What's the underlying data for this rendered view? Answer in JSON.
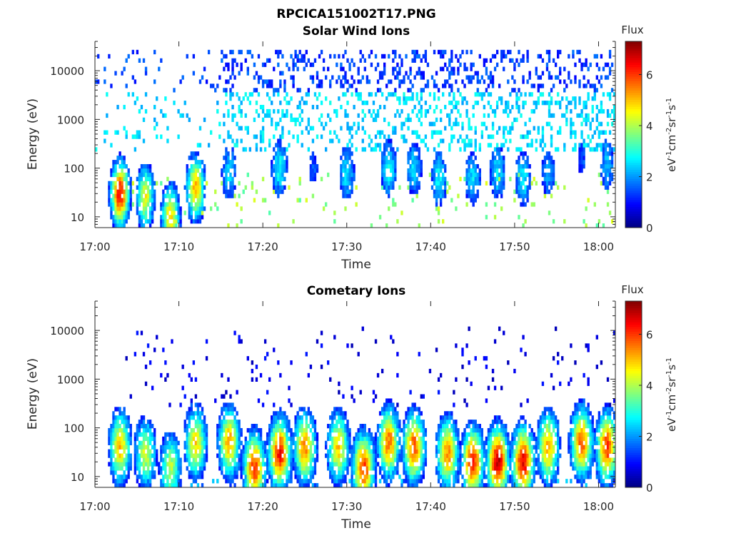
{
  "figure_title": "RPCICA151002T17.PNG",
  "chart_data": [
    {
      "type": "heatmap",
      "title": "Solar Wind Ions",
      "xlabel": "Time",
      "ylabel": "Energy (eV)",
      "x_tick_labels": [
        "17:00",
        "17:10",
        "17:20",
        "17:30",
        "17:40",
        "17:50",
        "18:00"
      ],
      "x_range": [
        "17:00",
        "18:02"
      ],
      "y_scale": "log",
      "y_tick_labels": [
        "10",
        "100",
        "1000",
        "10000"
      ],
      "y_range": [
        6,
        40000
      ],
      "colorbar": {
        "label_top": "Flux",
        "unit_label": "eV-1cm-2sr-1s-1",
        "ticks": [
          "0",
          "2",
          "4",
          "6"
        ],
        "range": [
          0,
          7.3
        ],
        "colormap": "jet"
      },
      "bursts": [
        {
          "time": "17:03",
          "peak_energy": 30,
          "peak_flux": 6.5
        },
        {
          "time": "17:06",
          "peak_energy": 25,
          "peak_flux": 4.5
        },
        {
          "time": "17:09",
          "peak_energy": 10,
          "peak_flux": 4.8
        },
        {
          "time": "17:12",
          "peak_energy": 40,
          "peak_flux": 5.2
        },
        {
          "time": "17:16",
          "peak_energy": 80,
          "peak_flux": 2.5
        },
        {
          "time": "17:22",
          "peak_energy": 100,
          "peak_flux": 2.8
        },
        {
          "time": "17:26",
          "peak_energy": 100,
          "peak_flux": 1.5
        },
        {
          "time": "17:30",
          "peak_energy": 80,
          "peak_flux": 2.6
        },
        {
          "time": "17:35",
          "peak_energy": 100,
          "peak_flux": 2.8
        },
        {
          "time": "17:38",
          "peak_energy": 100,
          "peak_flux": 2.5
        },
        {
          "time": "17:41",
          "peak_energy": 60,
          "peak_flux": 2.7
        },
        {
          "time": "17:45",
          "peak_energy": 60,
          "peak_flux": 2.5
        },
        {
          "time": "17:48",
          "peak_energy": 80,
          "peak_flux": 2.6
        },
        {
          "time": "17:51",
          "peak_energy": 60,
          "peak_flux": 2.7
        },
        {
          "time": "17:54",
          "peak_energy": 80,
          "peak_flux": 2.0
        },
        {
          "time": "17:58",
          "peak_energy": 150,
          "peak_flux": 1.5
        },
        {
          "time": "18:01",
          "peak_energy": 120,
          "peak_flux": 2.2
        }
      ]
    },
    {
      "type": "heatmap",
      "title": "Cometary Ions",
      "xlabel": "Time",
      "ylabel": "Energy (eV)",
      "x_tick_labels": [
        "17:00",
        "17:10",
        "17:20",
        "17:30",
        "17:40",
        "17:50",
        "18:00"
      ],
      "x_range": [
        "17:00",
        "18:02"
      ],
      "y_scale": "log",
      "y_tick_labels": [
        "10",
        "100",
        "1000",
        "10000"
      ],
      "y_range": [
        6,
        40000
      ],
      "colorbar": {
        "label_top": "Flux",
        "unit_label": "eV-1cm-2sr-1s-1",
        "ticks": [
          "0",
          "2",
          "4",
          "6"
        ],
        "range": [
          0,
          7.3
        ],
        "colormap": "jet"
      },
      "bursts": [
        {
          "time": "17:03",
          "peak_energy": 40,
          "peak_flux": 5.0
        },
        {
          "time": "17:06",
          "peak_energy": 30,
          "peak_flux": 4.2
        },
        {
          "time": "17:09",
          "peak_energy": 15,
          "peak_flux": 4.0
        },
        {
          "time": "17:12",
          "peak_energy": 50,
          "peak_flux": 4.8
        },
        {
          "time": "17:16",
          "peak_energy": 50,
          "peak_flux": 5.2
        },
        {
          "time": "17:19",
          "peak_energy": 15,
          "peak_flux": 6.0
        },
        {
          "time": "17:22",
          "peak_energy": 30,
          "peak_flux": 6.3
        },
        {
          "time": "17:25",
          "peak_energy": 40,
          "peak_flux": 5.5
        },
        {
          "time": "17:29",
          "peak_energy": 40,
          "peak_flux": 5.0
        },
        {
          "time": "17:32",
          "peak_energy": 15,
          "peak_flux": 6.0
        },
        {
          "time": "17:35",
          "peak_energy": 50,
          "peak_flux": 5.6
        },
        {
          "time": "17:38",
          "peak_energy": 40,
          "peak_flux": 5.8
        },
        {
          "time": "17:42",
          "peak_energy": 30,
          "peak_flux": 5.4
        },
        {
          "time": "17:45",
          "peak_energy": 20,
          "peak_flux": 6.2
        },
        {
          "time": "17:48",
          "peak_energy": 20,
          "peak_flux": 6.8
        },
        {
          "time": "17:51",
          "peak_energy": 20,
          "peak_flux": 6.6
        },
        {
          "time": "17:54",
          "peak_energy": 40,
          "peak_flux": 5.2
        },
        {
          "time": "17:58",
          "peak_energy": 50,
          "peak_flux": 5.8
        },
        {
          "time": "18:01",
          "peak_energy": 40,
          "peak_flux": 6.0
        }
      ]
    }
  ]
}
